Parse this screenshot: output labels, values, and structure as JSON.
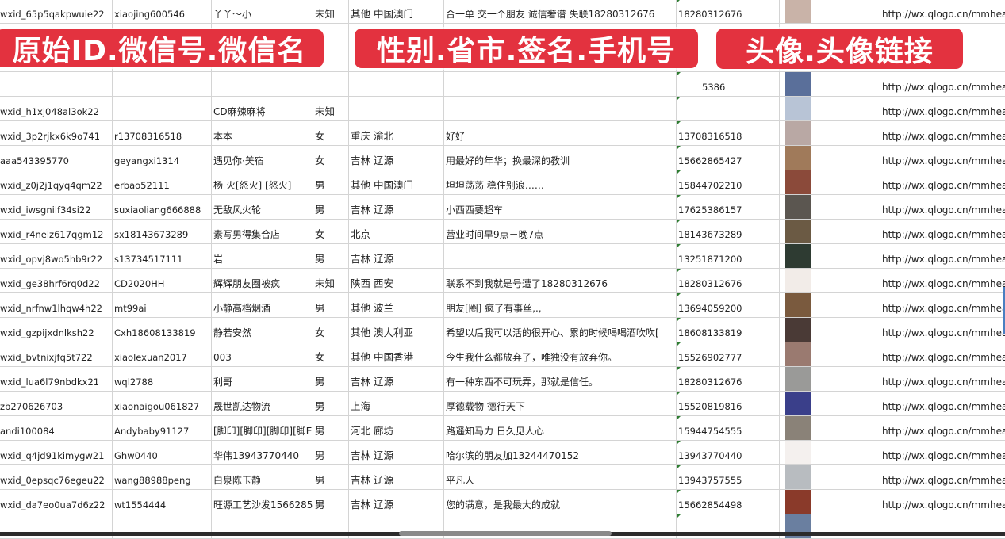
{
  "overlays": [
    "原始ID.微信号.微信名",
    "性别.省市.签名.手机号",
    "头像.头像链接"
  ],
  "rows": [
    {
      "id": "wxid_65p5qakpwuie22",
      "wechat": "xiaojing600546",
      "name": "丫丫～小",
      "gender": "未知",
      "region": "其他 中国澳门",
      "signature": "合一单 交一个朋友 诚信奢谱 失联18280312676",
      "phone": "18280312676",
      "avatar_color": "#c9b3a8",
      "url": "http://wx.qlogo.cn/mmhead"
    },
    {
      "id": "",
      "wechat": "",
      "name": "",
      "gender": "",
      "region": "",
      "signature": "",
      "phone": "5386",
      "avatar_color": "#5a6f9a",
      "url": "http://wx.qlogo.cn/mmhead"
    },
    {
      "id": "wxid_h1xj048al3ok22",
      "wechat": "",
      "name": "CD麻辣麻将",
      "gender": "未知",
      "region": "",
      "signature": "",
      "phone": "",
      "avatar_color": "#b8c4d6",
      "url": "http://wx.qlogo.cn/mmhead"
    },
    {
      "id": "wxid_3p2rjkx6k9o741",
      "wechat": "r13708316518",
      "name": "本本",
      "gender": "女",
      "region": "重庆 渝北",
      "signature": "好好",
      "phone": "13708316518",
      "avatar_color": "#b9a8a4",
      "url": "http://wx.qlogo.cn/mmhead"
    },
    {
      "id": "aaa543395770",
      "wechat": "geyangxi1314",
      "name": "遇见你·美宿",
      "gender": "女",
      "region": "吉林 辽源",
      "signature": "用最好的年华；换最深的教训",
      "phone": "15662865427",
      "avatar_color": "#a07a5a",
      "url": "http://wx.qlogo.cn/mmhead"
    },
    {
      "id": "wxid_z0j2j1qyq4qm22",
      "wechat": "erbao52111",
      "name": "杨 火[怒火] [怒火]",
      "gender": "男",
      "region": "其他 中国澳门",
      "signature": "坦坦荡荡 稳住别浪……",
      "phone": "15844702210",
      "avatar_color": "#8b4a3a",
      "url": "http://wx.qlogo.cn/mmhead"
    },
    {
      "id": "wxid_iwsgnilf34si22",
      "wechat": "suxiaoliang666888",
      "name": "无敌风火轮",
      "gender": "男",
      "region": "吉林 辽源",
      "signature": "小西西要超车",
      "phone": "17625386157",
      "avatar_color": "#5b5650",
      "url": "http://wx.qlogo.cn/mmhead"
    },
    {
      "id": "wxid_r4nelz617qgm12",
      "wechat": "sx18143673289",
      "name": "素写男得集合店",
      "gender": "女",
      "region": "北京",
      "signature": "营业时间早9点－晚7点",
      "phone": "18143673289",
      "avatar_color": "#6b5a44",
      "url": "http://wx.qlogo.cn/mmhead"
    },
    {
      "id": "wxid_opvj8wo5hb9r22",
      "wechat": "s13734517111",
      "name": "岩",
      "gender": "男",
      "region": "吉林 辽源",
      "signature": "",
      "phone": "13251871200",
      "avatar_color": "#2e3b32",
      "url": "http://wx.qlogo.cn/mmhead"
    },
    {
      "id": "wxid_ge38hrf6rq0d22",
      "wechat": "CD2020HH",
      "name": "辉辉朋友圈被疯",
      "gender": "未知",
      "region": "陕西 西安",
      "signature": "联系不到我就是号遭了18280312676",
      "phone": "18280312676",
      "avatar_color": "#f2ece8",
      "url": "http://wx.qlogo.cn/mmhead"
    },
    {
      "id": "wxid_nrfnw1lhqw4h22",
      "wechat": "mt99ai",
      "name": "小静高档烟酒",
      "gender": "男",
      "region": "其他 波兰",
      "signature": "朋友[圈] 疯了有事丝,.,",
      "phone": "13694059200",
      "avatar_color": "#7a5a3e",
      "url": "http://wx.qlogo.cn/mmhead"
    },
    {
      "id": "wxid_gzpijxdnlksh22",
      "wechat": "Cxh18608133819",
      "name": "静若安然",
      "gender": "女",
      "region": "其他 澳大利亚",
      "signature": "希望以后我可以活的很开心、累的时候喝喝酒吹吹[",
      "phone": "18608133819",
      "avatar_color": "#4a3a36",
      "url": "http://wx.qlogo.cn/mmhead"
    },
    {
      "id": "wxid_bvtnixjfq5t722",
      "wechat": "xiaolexuan2017",
      "name": "003",
      "gender": "女",
      "region": "其他 中国香港",
      "signature": "今生我什么都放弃了，唯独没有放弃你。",
      "phone": "15526902777",
      "avatar_color": "#9a7a70",
      "url": "http://wx.qlogo.cn/mmhead"
    },
    {
      "id": "wxid_lua6l79nbdkx21",
      "wechat": "wql2788",
      "name": "利哥",
      "gender": "男",
      "region": "吉林 辽源",
      "signature": "有一种东西不可玩弄，那就是信任。",
      "phone": "18280312676",
      "avatar_color": "#9a9a98",
      "url": "http://wx.qlogo.cn/mmhead"
    },
    {
      "id": "zb270626703",
      "wechat": "xiaonaigou061827",
      "name": "晟世凯达物流",
      "gender": "男",
      "region": "上海",
      "signature": "厚德载物 德行天下",
      "phone": "15520819816",
      "avatar_color": "#3a3f8a",
      "url": "http://wx.qlogo.cn/mmhead"
    },
    {
      "id": "andi100084",
      "wechat": "Andybaby91127",
      "name": "[脚印][脚印][脚印][脚E",
      "gender": "男",
      "region": "河北 廊坊",
      "signature": "路遥知马力 日久见人心",
      "phone": "15944754555",
      "avatar_color": "#8a8278",
      "url": "http://wx.qlogo.cn/mmhead"
    },
    {
      "id": "wxid_q4jd91kimygw21",
      "wechat": "Ghw0440",
      "name": "华伟13943770440",
      "gender": "男",
      "region": "吉林 辽源",
      "signature": "哈尔滨的朋友加13244470152",
      "phone": "13943770440",
      "avatar_color": "#f4f0ee",
      "url": "http://wx.qlogo.cn/mmhead"
    },
    {
      "id": "wxid_0epsqc76egeu22",
      "wechat": "wang88988peng",
      "name": "白泉陈玉静",
      "gender": "男",
      "region": "吉林 辽源",
      "signature": "平凡人",
      "phone": "13943757555",
      "avatar_color": "#b8bcc0",
      "url": "http://wx.qlogo.cn/mmhead"
    },
    {
      "id": "wxid_da7eo0ua7d6z22",
      "wechat": "wt1554444",
      "name": "旺源工艺沙发15662854",
      "gender": "男",
      "region": "吉林 辽源",
      "signature": "您的满意，是我最大的成就",
      "phone": "15662854498",
      "avatar_color": "#8a3a2a",
      "url": "http://wx.qlogo.cn/mmhead"
    },
    {
      "id": "",
      "wechat": "",
      "name": "",
      "gender": "",
      "region": "",
      "signature": "",
      "phone": "",
      "avatar_color": "#6a7fa0",
      "url": ""
    }
  ]
}
